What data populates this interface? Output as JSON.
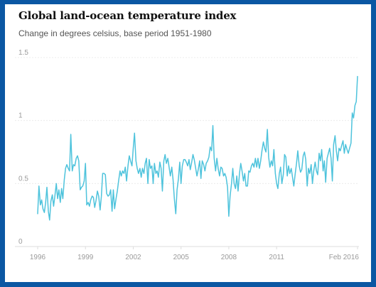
{
  "chart_data": {
    "type": "line",
    "title": "Global land-ocean temperature index",
    "subtitle": "Change in degrees celsius, base period 1951-1980",
    "xlabel": "",
    "ylabel": "",
    "x_ticks": [
      {
        "x": 1996.0,
        "label": "1996"
      },
      {
        "x": 1999.0,
        "label": "1999"
      },
      {
        "x": 2002.0,
        "label": "2002"
      },
      {
        "x": 2005.0,
        "label": "2005"
      },
      {
        "x": 2008.0,
        "label": "2008"
      },
      {
        "x": 2011.0,
        "label": "2011"
      },
      {
        "x": 2016.08,
        "label": "Feb 2016"
      }
    ],
    "y_ticks": [
      {
        "y": 0,
        "label": "0"
      },
      {
        "y": 0.5,
        "label": "0.5"
      },
      {
        "y": 1,
        "label": "1"
      },
      {
        "y": 1.5,
        "label": "1.5"
      }
    ],
    "xlim": [
      1996,
      2016.08
    ],
    "ylim": [
      0,
      1.5
    ],
    "grid": true,
    "colors": {
      "line": "#4ec3dc",
      "background": "#ffffff",
      "border": "#0b57a3"
    },
    "series": [
      {
        "color": "#4ec3dc",
        "points": [
          [
            1996.0,
            0.26
          ],
          [
            1996.08,
            0.48
          ],
          [
            1996.17,
            0.33
          ],
          [
            1996.25,
            0.37
          ],
          [
            1996.33,
            0.3
          ],
          [
            1996.42,
            0.27
          ],
          [
            1996.5,
            0.35
          ],
          [
            1996.58,
            0.47
          ],
          [
            1996.67,
            0.28
          ],
          [
            1996.75,
            0.21
          ],
          [
            1996.83,
            0.36
          ],
          [
            1996.92,
            0.41
          ],
          [
            1997.0,
            0.32
          ],
          [
            1997.08,
            0.4
          ],
          [
            1997.17,
            0.5
          ],
          [
            1997.25,
            0.38
          ],
          [
            1997.33,
            0.45
          ],
          [
            1997.42,
            0.35
          ],
          [
            1997.5,
            0.46
          ],
          [
            1997.58,
            0.38
          ],
          [
            1997.67,
            0.53
          ],
          [
            1997.75,
            0.62
          ],
          [
            1997.83,
            0.65
          ],
          [
            1997.92,
            0.62
          ],
          [
            1998.0,
            0.6
          ],
          [
            1998.08,
            0.89
          ],
          [
            1998.17,
            0.6
          ],
          [
            1998.25,
            0.65
          ],
          [
            1998.33,
            0.64
          ],
          [
            1998.42,
            0.7
          ],
          [
            1998.5,
            0.72
          ],
          [
            1998.58,
            0.68
          ],
          [
            1998.67,
            0.45
          ],
          [
            1998.75,
            0.47
          ],
          [
            1998.83,
            0.48
          ],
          [
            1998.92,
            0.52
          ],
          [
            1999.0,
            0.66
          ],
          [
            1999.08,
            0.33
          ],
          [
            1999.17,
            0.35
          ],
          [
            1999.25,
            0.32
          ],
          [
            1999.33,
            0.37
          ],
          [
            1999.42,
            0.4
          ],
          [
            1999.5,
            0.39
          ],
          [
            1999.58,
            0.31
          ],
          [
            1999.67,
            0.37
          ],
          [
            1999.75,
            0.44
          ],
          [
            1999.83,
            0.4
          ],
          [
            1999.92,
            0.29
          ],
          [
            2000.0,
            0.4
          ],
          [
            2000.08,
            0.58
          ],
          [
            2000.17,
            0.58
          ],
          [
            2000.25,
            0.57
          ],
          [
            2000.33,
            0.42
          ],
          [
            2000.42,
            0.4
          ],
          [
            2000.5,
            0.41
          ],
          [
            2000.58,
            0.45
          ],
          [
            2000.67,
            0.28
          ],
          [
            2000.75,
            0.45
          ],
          [
            2000.83,
            0.3
          ],
          [
            2000.92,
            0.38
          ],
          [
            2001.0,
            0.44
          ],
          [
            2001.08,
            0.52
          ],
          [
            2001.17,
            0.6
          ],
          [
            2001.25,
            0.56
          ],
          [
            2001.33,
            0.6
          ],
          [
            2001.42,
            0.58
          ],
          [
            2001.5,
            0.63
          ],
          [
            2001.58,
            0.52
          ],
          [
            2001.67,
            0.64
          ],
          [
            2001.75,
            0.72
          ],
          [
            2001.83,
            0.68
          ],
          [
            2001.92,
            0.64
          ],
          [
            2002.0,
            0.78
          ],
          [
            2002.08,
            0.9
          ],
          [
            2002.17,
            0.68
          ],
          [
            2002.25,
            0.62
          ],
          [
            2002.33,
            0.58
          ],
          [
            2002.42,
            0.62
          ],
          [
            2002.5,
            0.55
          ],
          [
            2002.58,
            0.62
          ],
          [
            2002.67,
            0.58
          ],
          [
            2002.75,
            0.66
          ],
          [
            2002.83,
            0.7
          ],
          [
            2002.92,
            0.5
          ],
          [
            2003.0,
            0.69
          ],
          [
            2003.08,
            0.62
          ],
          [
            2003.17,
            0.64
          ],
          [
            2003.25,
            0.5
          ],
          [
            2003.33,
            0.66
          ],
          [
            2003.42,
            0.58
          ],
          [
            2003.5,
            0.6
          ],
          [
            2003.58,
            0.55
          ],
          [
            2003.67,
            0.67
          ],
          [
            2003.75,
            0.62
          ],
          [
            2003.83,
            0.44
          ],
          [
            2003.92,
            0.68
          ],
          [
            2004.0,
            0.73
          ],
          [
            2004.08,
            0.66
          ],
          [
            2004.17,
            0.7
          ],
          [
            2004.25,
            0.63
          ],
          [
            2004.33,
            0.56
          ],
          [
            2004.42,
            0.63
          ],
          [
            2004.5,
            0.53
          ],
          [
            2004.58,
            0.38
          ],
          [
            2004.67,
            0.26
          ],
          [
            2004.75,
            0.45
          ],
          [
            2004.83,
            0.53
          ],
          [
            2004.92,
            0.67
          ],
          [
            2005.0,
            0.5
          ],
          [
            2005.08,
            0.64
          ],
          [
            2005.17,
            0.69
          ],
          [
            2005.25,
            0.69
          ],
          [
            2005.33,
            0.67
          ],
          [
            2005.42,
            0.64
          ],
          [
            2005.5,
            0.69
          ],
          [
            2005.58,
            0.61
          ],
          [
            2005.67,
            0.67
          ],
          [
            2005.75,
            0.73
          ],
          [
            2005.83,
            0.69
          ],
          [
            2005.92,
            0.62
          ],
          [
            2006.0,
            0.56
          ],
          [
            2006.08,
            0.61
          ],
          [
            2006.17,
            0.68
          ],
          [
            2006.25,
            0.54
          ],
          [
            2006.33,
            0.68
          ],
          [
            2006.42,
            0.65
          ],
          [
            2006.5,
            0.6
          ],
          [
            2006.58,
            0.66
          ],
          [
            2006.67,
            0.68
          ],
          [
            2006.75,
            0.71
          ],
          [
            2006.83,
            0.79
          ],
          [
            2006.92,
            0.76
          ],
          [
            2007.0,
            0.96
          ],
          [
            2007.08,
            0.7
          ],
          [
            2007.17,
            0.6
          ],
          [
            2007.25,
            0.7
          ],
          [
            2007.33,
            0.62
          ],
          [
            2007.42,
            0.56
          ],
          [
            2007.5,
            0.63
          ],
          [
            2007.58,
            0.62
          ],
          [
            2007.67,
            0.56
          ],
          [
            2007.75,
            0.58
          ],
          [
            2007.83,
            0.55
          ],
          [
            2007.92,
            0.47
          ],
          [
            2008.0,
            0.24
          ],
          [
            2008.08,
            0.4
          ],
          [
            2008.17,
            0.5
          ],
          [
            2008.25,
            0.62
          ],
          [
            2008.33,
            0.5
          ],
          [
            2008.42,
            0.46
          ],
          [
            2008.5,
            0.56
          ],
          [
            2008.58,
            0.44
          ],
          [
            2008.67,
            0.58
          ],
          [
            2008.75,
            0.66
          ],
          [
            2008.83,
            0.6
          ],
          [
            2008.92,
            0.52
          ],
          [
            2009.0,
            0.58
          ],
          [
            2009.08,
            0.48
          ],
          [
            2009.17,
            0.48
          ],
          [
            2009.25,
            0.6
          ],
          [
            2009.33,
            0.59
          ],
          [
            2009.42,
            0.64
          ],
          [
            2009.5,
            0.66
          ],
          [
            2009.58,
            0.63
          ],
          [
            2009.67,
            0.7
          ],
          [
            2009.75,
            0.63
          ],
          [
            2009.83,
            0.7
          ],
          [
            2009.92,
            0.62
          ],
          [
            2010.0,
            0.68
          ],
          [
            2010.08,
            0.76
          ],
          [
            2010.17,
            0.83
          ],
          [
            2010.25,
            0.78
          ],
          [
            2010.33,
            0.75
          ],
          [
            2010.42,
            0.93
          ],
          [
            2010.5,
            0.71
          ],
          [
            2010.58,
            0.63
          ],
          [
            2010.67,
            0.68
          ],
          [
            2010.75,
            0.64
          ],
          [
            2010.83,
            0.77
          ],
          [
            2010.92,
            0.58
          ],
          [
            2011.0,
            0.5
          ],
          [
            2011.08,
            0.46
          ],
          [
            2011.17,
            0.58
          ],
          [
            2011.25,
            0.63
          ],
          [
            2011.33,
            0.5
          ],
          [
            2011.42,
            0.57
          ],
          [
            2011.5,
            0.73
          ],
          [
            2011.58,
            0.71
          ],
          [
            2011.67,
            0.56
          ],
          [
            2011.75,
            0.64
          ],
          [
            2011.83,
            0.58
          ],
          [
            2011.92,
            0.62
          ],
          [
            2012.0,
            0.55
          ],
          [
            2012.08,
            0.48
          ],
          [
            2012.17,
            0.58
          ],
          [
            2012.25,
            0.66
          ],
          [
            2012.33,
            0.76
          ],
          [
            2012.42,
            0.64
          ],
          [
            2012.5,
            0.59
          ],
          [
            2012.58,
            0.61
          ],
          [
            2012.67,
            0.72
          ],
          [
            2012.75,
            0.75
          ],
          [
            2012.83,
            0.69
          ],
          [
            2012.92,
            0.48
          ],
          [
            2013.0,
            0.62
          ],
          [
            2013.08,
            0.58
          ],
          [
            2013.17,
            0.65
          ],
          [
            2013.25,
            0.5
          ],
          [
            2013.33,
            0.6
          ],
          [
            2013.42,
            0.67
          ],
          [
            2013.5,
            0.6
          ],
          [
            2013.58,
            0.57
          ],
          [
            2013.67,
            0.74
          ],
          [
            2013.75,
            0.68
          ],
          [
            2013.83,
            0.77
          ],
          [
            2013.92,
            0.6
          ],
          [
            2014.0,
            0.68
          ],
          [
            2014.08,
            0.51
          ],
          [
            2014.17,
            0.7
          ],
          [
            2014.25,
            0.74
          ],
          [
            2014.33,
            0.78
          ],
          [
            2014.42,
            0.7
          ],
          [
            2014.5,
            0.52
          ],
          [
            2014.58,
            0.81
          ],
          [
            2014.67,
            0.88
          ],
          [
            2014.75,
            0.76
          ],
          [
            2014.83,
            0.68
          ],
          [
            2014.92,
            0.78
          ],
          [
            2015.0,
            0.76
          ],
          [
            2015.08,
            0.8
          ],
          [
            2015.17,
            0.84
          ],
          [
            2015.25,
            0.74
          ],
          [
            2015.33,
            0.81
          ],
          [
            2015.42,
            0.77
          ],
          [
            2015.5,
            0.74
          ],
          [
            2015.58,
            0.78
          ],
          [
            2015.67,
            0.82
          ],
          [
            2015.75,
            1.06
          ],
          [
            2015.83,
            1.02
          ],
          [
            2015.92,
            1.12
          ],
          [
            2016.0,
            1.15
          ],
          [
            2016.08,
            1.35
          ]
        ]
      }
    ]
  }
}
